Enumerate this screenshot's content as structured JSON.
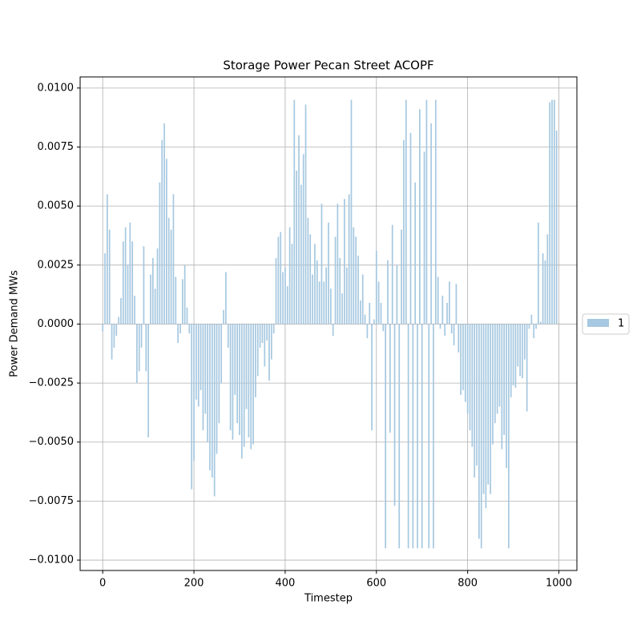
{
  "chart_data": {
    "type": "bar",
    "title": "Storage Power Pecan Street ACOPF",
    "xlabel": "Timestep",
    "ylabel": "Power Demand MWs",
    "x": [
      0,
      5,
      10,
      15,
      20,
      25,
      30,
      35,
      40,
      45,
      50,
      55,
      60,
      65,
      70,
      75,
      80,
      85,
      90,
      95,
      100,
      105,
      110,
      115,
      120,
      125,
      130,
      135,
      140,
      145,
      150,
      155,
      160,
      165,
      170,
      175,
      180,
      185,
      190,
      195,
      200,
      205,
      210,
      215,
      220,
      225,
      230,
      235,
      240,
      245,
      250,
      255,
      260,
      265,
      270,
      275,
      280,
      285,
      290,
      295,
      300,
      305,
      310,
      315,
      320,
      325,
      330,
      335,
      340,
      345,
      350,
      355,
      360,
      365,
      370,
      375,
      380,
      385,
      390,
      395,
      400,
      405,
      410,
      415,
      420,
      425,
      430,
      435,
      440,
      445,
      450,
      455,
      460,
      465,
      470,
      475,
      480,
      485,
      490,
      495,
      500,
      505,
      510,
      515,
      520,
      525,
      530,
      535,
      540,
      545,
      550,
      555,
      560,
      565,
      570,
      575,
      580,
      585,
      590,
      595,
      600,
      605,
      610,
      615,
      620,
      625,
      630,
      635,
      640,
      645,
      650,
      655,
      660,
      665,
      670,
      675,
      680,
      685,
      690,
      695,
      700,
      705,
      710,
      715,
      720,
      725,
      730,
      735,
      740,
      745,
      750,
      755,
      760,
      765,
      770,
      775,
      780,
      785,
      790,
      795,
      800,
      805,
      810,
      815,
      820,
      825,
      830,
      835,
      840,
      845,
      850,
      855,
      860,
      865,
      870,
      875,
      880,
      885,
      890,
      895,
      900,
      905,
      910,
      915,
      920,
      925,
      930,
      935,
      940,
      945,
      950,
      955,
      960,
      965,
      970,
      975,
      980,
      985,
      990,
      995
    ],
    "series": [
      {
        "name": "1",
        "color": "#a6c8e0",
        "values": [
          -0.0003,
          0.003,
          0.0055,
          0.004,
          -0.0015,
          -0.001,
          -0.0005,
          0.0003,
          0.0011,
          0.0035,
          0.0041,
          0.0025,
          0.0043,
          0.0035,
          0.0012,
          -0.0025,
          -0.002,
          -0.001,
          0.0033,
          -0.002,
          -0.0048,
          0.0021,
          0.0028,
          0.0015,
          0.0032,
          0.006,
          0.0078,
          0.0085,
          0.007,
          0.0045,
          0.004,
          0.0055,
          0.002,
          -0.0008,
          -0.0004,
          0.0019,
          0.0025,
          0.0007,
          -0.0004,
          -0.007,
          -0.0058,
          -0.0032,
          -0.0035,
          -0.0028,
          -0.0045,
          -0.0038,
          -0.005,
          -0.0062,
          -0.0065,
          -0.0073,
          -0.0055,
          -0.0042,
          -0.0025,
          0.0006,
          0.0022,
          -0.001,
          -0.0045,
          -0.0049,
          -0.003,
          -0.0042,
          -0.0047,
          -0.0057,
          -0.0052,
          -0.0036,
          -0.0048,
          -0.0053,
          -0.0051,
          -0.0031,
          -0.0022,
          -0.001,
          -0.0008,
          -0.0018,
          -0.0007,
          -0.0024,
          -0.0015,
          -0.0004,
          0.0028,
          0.0037,
          0.0039,
          0.0022,
          0.0024,
          0.0016,
          0.0041,
          0.0034,
          0.0095,
          0.0065,
          0.008,
          0.0059,
          0.0072,
          0.0093,
          0.0045,
          0.0038,
          0.0021,
          0.0034,
          0.0027,
          0.0018,
          0.0051,
          0.0018,
          0.0024,
          0.0043,
          0.0015,
          -0.0005,
          0.0037,
          0.0051,
          0.0028,
          0.0013,
          0.0053,
          0.0024,
          0.0055,
          0.0095,
          0.0041,
          0.0037,
          0.0029,
          0.001,
          0.0021,
          0.0004,
          -0.0006,
          0.0009,
          -0.0045,
          0.0002,
          0.0031,
          0.0018,
          0.0009,
          -0.0003,
          -0.0095,
          0.0027,
          -0.0046,
          0.0042,
          -0.0077,
          0.0025,
          -0.0095,
          0.004,
          0.0078,
          0.0095,
          -0.0095,
          0.0081,
          -0.0095,
          0.006,
          -0.0095,
          0.0091,
          -0.0095,
          0.0073,
          0.0095,
          -0.0095,
          0.0085,
          -0.0095,
          0.0095,
          0.002,
          -0.0002,
          0.0012,
          -0.0005,
          0.0009,
          0.0018,
          -0.0004,
          -0.0009,
          0.0017,
          -0.0012,
          -0.003,
          -0.0028,
          -0.0033,
          -0.0038,
          -0.0045,
          -0.0052,
          -0.0065,
          -0.006,
          -0.0091,
          -0.0095,
          -0.0072,
          -0.0078,
          -0.0068,
          -0.0072,
          -0.0051,
          -0.0042,
          -0.0038,
          -0.0035,
          -0.0053,
          -0.0047,
          -0.0061,
          -0.0095,
          -0.0031,
          -0.0026,
          -0.0027,
          -0.0018,
          -0.0022,
          -0.0023,
          -0.0015,
          -0.0037,
          -0.0002,
          0.0004,
          -0.0006,
          -0.0002,
          0.0043,
          0.0001,
          0.003,
          0.0027,
          0.0038,
          0.0094,
          0.0095,
          0.0095,
          0.0082
        ]
      }
    ],
    "xlim": [
      -49.5,
      1039.5
    ],
    "xticks": [
      0,
      200,
      400,
      600,
      800,
      1000
    ],
    "ylim": [
      -0.01044,
      0.01047
    ],
    "yticks": [
      {
        "value": -0.01,
        "label": "−0.0100"
      },
      {
        "value": -0.0075,
        "label": "−0.0075"
      },
      {
        "value": -0.005,
        "label": "−0.0050"
      },
      {
        "value": -0.0025,
        "label": "−0.0025"
      },
      {
        "value": 0,
        "label": "0.0000"
      },
      {
        "value": 0.0025,
        "label": "0.0025"
      },
      {
        "value": 0.005,
        "label": "0.0050"
      },
      {
        "value": 0.0075,
        "label": "0.0075"
      },
      {
        "value": 0.01,
        "label": "0.0100"
      }
    ],
    "grid": true,
    "legend": "outside right"
  }
}
